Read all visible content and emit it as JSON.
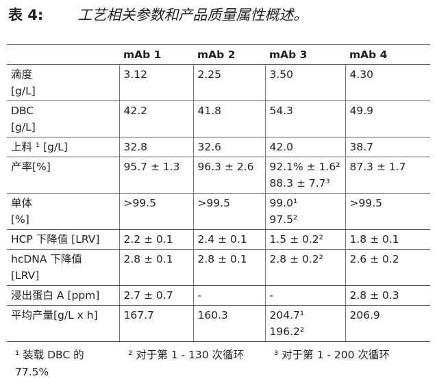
{
  "header": {
    "label": "表 4:",
    "title": "工艺相关参数和产品质量属性概述。"
  },
  "table": {
    "columns": [
      "",
      "mAb 1",
      "mAb 2",
      "mAb 3",
      "mAb 4"
    ],
    "rows": [
      [
        [
          "滴度",
          "[g/L]"
        ],
        [
          "3.12"
        ],
        [
          "2.25"
        ],
        [
          "3.50"
        ],
        [
          "4.30"
        ]
      ],
      [
        [
          "DBC",
          "[g/L]"
        ],
        [
          "42.2"
        ],
        [
          "41.8"
        ],
        [
          "54.3"
        ],
        [
          "49.9"
        ]
      ],
      [
        [
          "上料 ¹ [g/L]"
        ],
        [
          "32.8"
        ],
        [
          "32.6"
        ],
        [
          "42.0"
        ],
        [
          "38.7"
        ]
      ],
      [
        [
          "产率[%]"
        ],
        [
          "95.7 ± 1.3"
        ],
        [
          "96.3 ± 2.6"
        ],
        [
          "92.1% ± 1.6²",
          "88.3 ± 7.7³"
        ],
        [
          "87.3 ± 1.7"
        ]
      ],
      [
        [
          "单体",
          "[%]"
        ],
        [
          ">99.5"
        ],
        [
          ">99.5"
        ],
        [
          "99.0¹",
          "97.5²"
        ],
        [
          ">99.5"
        ]
      ],
      [
        [
          "HCP 下降值 [LRV]"
        ],
        [
          "2.2 ± 0.1"
        ],
        [
          "2.4 ± 0.1"
        ],
        [
          "1.5 ± 0.2²"
        ],
        [
          "1.8 ± 0.1"
        ]
      ],
      [
        [
          "hcDNA 下降值",
          "[LRV]"
        ],
        [
          "2.8 ± 0.1"
        ],
        [
          "2.8 ± 0.1"
        ],
        [
          "2.8 ± 0.2²"
        ],
        [
          "2.6 ± 0.2"
        ]
      ],
      [
        [
          "浸出蛋白 A [ppm]"
        ],
        [
          "2.7 ± 0.7"
        ],
        [
          "-"
        ],
        [
          "-"
        ],
        [
          "2.8 ± 0.3"
        ]
      ],
      [
        [
          "平均产量[g/L x h]"
        ],
        [
          "167.7"
        ],
        [
          "160.3"
        ],
        [
          "204.7¹",
          "196.2²"
        ],
        [
          "206.9"
        ]
      ]
    ]
  },
  "footnotes": [
    [
      "¹ 装载 DBC 的",
      "77.5%"
    ],
    [
      "² 对于第 1 - 130 次循环"
    ],
    [
      "³ 对于第 1 - 200 次循环"
    ]
  ]
}
